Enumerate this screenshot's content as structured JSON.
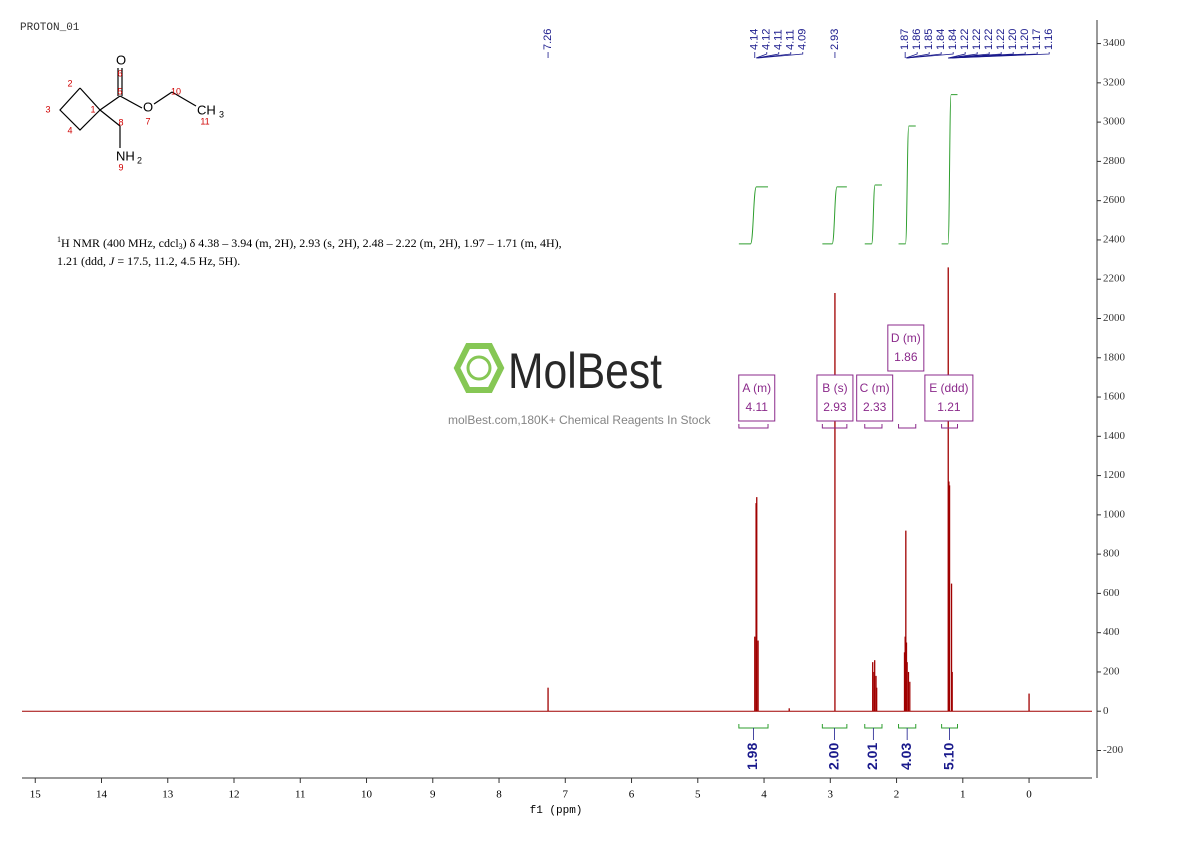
{
  "chart_data": {
    "type": "nmr",
    "title": "PROTON_01",
    "x_label": "f1 (ppm)",
    "xlim": [
      15.2,
      -0.95
    ],
    "xticks": [
      15,
      14,
      13,
      12,
      11,
      10,
      9,
      8,
      7,
      6,
      5,
      4,
      3,
      2,
      1,
      0
    ],
    "ylim": [
      -340,
      3520
    ],
    "yticks": [
      -200,
      0,
      200,
      400,
      600,
      800,
      1000,
      1200,
      1400,
      1600,
      1800,
      2000,
      2200,
      2400,
      2600,
      2800,
      3000,
      3200,
      3400
    ],
    "color": "#a00000",
    "peaks": {
      "x": [
        7.26,
        4.14,
        4.12,
        4.11,
        4.09,
        3.62,
        2.93,
        2.36,
        2.34,
        2.33,
        2.31,
        2.3,
        1.88,
        1.87,
        1.86,
        1.85,
        1.84,
        1.82,
        1.8,
        1.22,
        1.21,
        1.2,
        1.17,
        1.16,
        0.0
      ],
      "values": [
        120,
        380,
        1060,
        1090,
        360,
        15,
        2130,
        250,
        200,
        260,
        180,
        120,
        300,
        380,
        920,
        350,
        250,
        200,
        150,
        2260,
        1170,
        1150,
        650,
        200,
        90
      ]
    },
    "peak_labels": {
      "color": "#1a1a8c",
      "values": [
        7.26,
        4.14,
        4.12,
        4.11,
        4.11,
        4.09,
        2.93,
        1.87,
        1.86,
        1.85,
        1.84,
        1.84,
        1.22,
        1.22,
        1.22,
        1.22,
        1.2,
        1.2,
        1.17,
        1.16
      ],
      "value_labels": [
        "7.26",
        "4.14",
        "4.12",
        "4.11",
        "4.11",
        "4.09",
        "2.93",
        "1.87",
        "1.86",
        "1.85",
        "1.84",
        "1.84",
        "1.22",
        "1.22",
        "1.22",
        "1.22",
        "1.20",
        "1.20",
        "1.17",
        "1.16"
      ]
    },
    "multiplets": {
      "color": "#8b2a8b",
      "items": [
        {
          "name": "A (m)",
          "shift": 4.11,
          "range": [
            4.38,
            3.94
          ]
        },
        {
          "name": "B (s)",
          "shift": 2.93,
          "range": [
            3.12,
            2.75
          ]
        },
        {
          "name": "C (m)",
          "shift": 2.33,
          "range": [
            2.48,
            2.22
          ]
        },
        {
          "name": "D (m)",
          "shift": 1.86,
          "range": [
            1.97,
            1.71
          ]
        },
        {
          "name": "E (ddd)",
          "shift": 1.21,
          "range": [
            1.32,
            1.08
          ]
        }
      ]
    },
    "integrals": {
      "color": "#2e9e2e",
      "label_color": "#1a1a8c",
      "items": [
        {
          "value": 1.98,
          "label": "1.98",
          "curve": [
            2380,
            2670
          ]
        },
        {
          "value": 2,
          "label": "2.00",
          "curve": [
            2380,
            2670
          ]
        },
        {
          "value": 2.01,
          "label": "2.01",
          "curve": [
            2380,
            2680
          ]
        },
        {
          "value": 4.03,
          "label": "4.03",
          "curve": [
            2380,
            2980
          ]
        },
        {
          "value": 5.1,
          "label": "5.10",
          "curve": [
            2380,
            3140
          ]
        }
      ]
    },
    "description": {
      "sup": "1",
      "part1": "H NMR (400 MHz, cdcl",
      "sub": "3",
      "part2": ") δ 4.38 – 3.94 (m, 2H), 2.93 (s, 2H), 2.48 – 2.22 (m, 2H), 1.97 – 1.71 (m, 4H),",
      "part3": "1.21 (ddd, ",
      "j": "J",
      "part4": " = 17.5, 11.2, 4.5 Hz, 5H)."
    },
    "molecule": {
      "o_carbonyl": "O",
      "o_ester": "O",
      "ch3": "CH",
      "ch3_sub": "3",
      "nh2": "NH",
      "nh2_sub": "2",
      "numbers": [
        "1",
        "2",
        "3",
        "4",
        "5",
        "6",
        "7",
        "8",
        "9",
        "10",
        "11"
      ]
    },
    "watermark": {
      "logo": "MolBest",
      "tagline": "molBest.com,180K+ Chemical Reagents In Stock"
    }
  }
}
